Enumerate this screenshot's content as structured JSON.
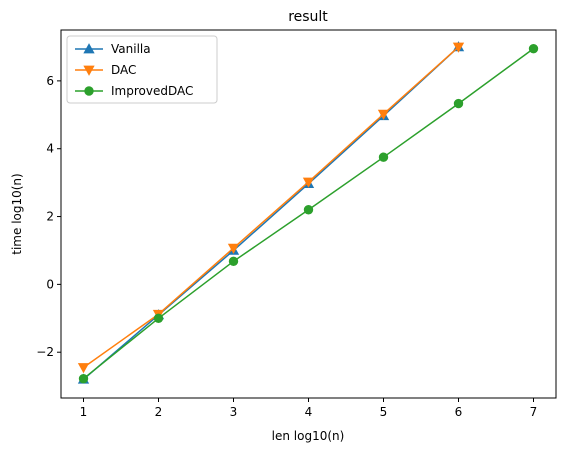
{
  "chart_data": {
    "type": "line",
    "title": "result",
    "xlabel": "len log10(n)",
    "ylabel": "time log10(n)",
    "xlim": [
      0.7,
      7.3
    ],
    "ylim": [
      -3.35,
      7.5
    ],
    "xticks": [
      1,
      2,
      3,
      4,
      5,
      6,
      7
    ],
    "yticks": [
      -2,
      0,
      2,
      4,
      6
    ],
    "grid": false,
    "legend_position": "top-left",
    "series": [
      {
        "name": "Vanilla",
        "color": "#1f77b4",
        "marker": "triangle-up",
        "x": [
          1,
          2,
          3,
          4,
          5,
          6
        ],
        "y": [
          -2.8,
          -0.9,
          1.0,
          2.97,
          4.97,
          7.0
        ]
      },
      {
        "name": "DAC",
        "color": "#ff7f0e",
        "marker": "triangle-down",
        "x": [
          1,
          2,
          3,
          4,
          5,
          6
        ],
        "y": [
          -2.45,
          -0.88,
          1.07,
          3.02,
          5.02,
          7.0
        ]
      },
      {
        "name": "ImprovedDAC",
        "color": "#2ca02c",
        "marker": "circle",
        "x": [
          1,
          2,
          3,
          4,
          5,
          6,
          7
        ],
        "y": [
          -2.78,
          -1.0,
          0.68,
          2.2,
          3.75,
          5.33,
          6.95
        ]
      }
    ]
  }
}
